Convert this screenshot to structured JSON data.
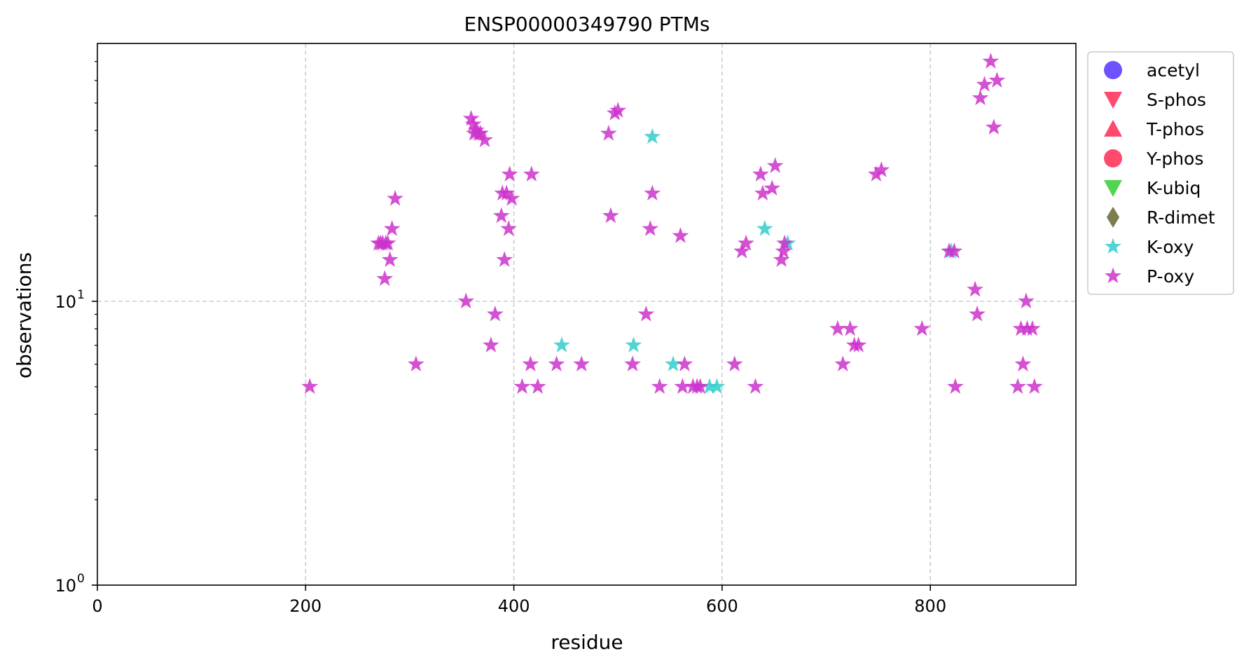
{
  "chart_data": {
    "type": "scatter",
    "title": "ENSP00000349790 PTMs",
    "xlabel": "residue",
    "ylabel": "observations",
    "xlim": [
      0,
      940
    ],
    "ylim": [
      1,
      75
    ],
    "y_scale": "log",
    "grid": true,
    "legend_position": "upper-right-outside",
    "x_ticks": [
      {
        "value": 0,
        "label": "0"
      },
      {
        "value": 200,
        "label": "200"
      },
      {
        "value": 400,
        "label": "400"
      },
      {
        "value": 600,
        "label": "600"
      },
      {
        "value": 800,
        "label": "800"
      }
    ],
    "y_ticks": [
      {
        "value": 1,
        "base": "10",
        "exp": "0"
      },
      {
        "value": 10,
        "base": "10",
        "exp": "1"
      }
    ],
    "series": [
      {
        "name": "acetyl",
        "marker": "circle",
        "color": "#5533ff",
        "points": []
      },
      {
        "name": "S-phos",
        "marker": "triangle-down",
        "color": "#ff2a55",
        "points": []
      },
      {
        "name": "T-phos",
        "marker": "triangle-up",
        "color": "#ff2a55",
        "points": []
      },
      {
        "name": "Y-phos",
        "marker": "circle",
        "color": "#ff2a55",
        "points": []
      },
      {
        "name": "K-ubiq",
        "marker": "triangle-down",
        "color": "#33cc33",
        "points": []
      },
      {
        "name": "R-dimet",
        "marker": "diamond",
        "color": "#666633",
        "points": []
      },
      {
        "name": "K-oxy",
        "marker": "star",
        "color": "#33cccc",
        "points": [
          [
            446,
            7
          ],
          [
            515,
            7
          ],
          [
            533,
            38
          ],
          [
            553,
            6
          ],
          [
            588,
            5
          ],
          [
            595,
            5
          ],
          [
            641,
            18
          ],
          [
            663,
            16
          ],
          [
            820,
            15
          ]
        ]
      },
      {
        "name": "P-oxy",
        "marker": "star",
        "color": "#cc33cc",
        "points": [
          [
            204,
            5
          ],
          [
            270,
            16
          ],
          [
            272,
            16
          ],
          [
            274,
            16
          ],
          [
            276,
            12
          ],
          [
            277,
            16
          ],
          [
            279,
            16
          ],
          [
            281,
            14
          ],
          [
            283,
            18
          ],
          [
            286,
            23
          ],
          [
            306,
            6
          ],
          [
            354,
            10
          ],
          [
            359,
            44
          ],
          [
            361,
            42
          ],
          [
            362,
            39
          ],
          [
            364,
            40
          ],
          [
            366,
            39
          ],
          [
            368,
            39
          ],
          [
            372,
            37
          ],
          [
            378,
            7
          ],
          [
            382,
            9
          ],
          [
            388,
            20
          ],
          [
            389,
            24
          ],
          [
            391,
            14
          ],
          [
            393,
            24
          ],
          [
            395,
            18
          ],
          [
            396,
            28
          ],
          [
            398,
            23
          ],
          [
            408,
            5
          ],
          [
            416,
            6
          ],
          [
            417,
            28
          ],
          [
            423,
            5
          ],
          [
            441,
            6
          ],
          [
            465,
            6
          ],
          [
            491,
            39
          ],
          [
            493,
            20
          ],
          [
            497,
            46
          ],
          [
            500,
            47
          ],
          [
            514,
            6
          ],
          [
            527,
            9
          ],
          [
            531,
            18
          ],
          [
            533,
            24
          ],
          [
            540,
            5
          ],
          [
            560,
            17
          ],
          [
            562,
            5
          ],
          [
            564,
            6
          ],
          [
            572,
            5
          ],
          [
            576,
            5
          ],
          [
            579,
            5
          ],
          [
            612,
            6
          ],
          [
            619,
            15
          ],
          [
            623,
            16
          ],
          [
            632,
            5
          ],
          [
            637,
            28
          ],
          [
            639,
            24
          ],
          [
            648,
            25
          ],
          [
            651,
            30
          ],
          [
            657,
            14
          ],
          [
            659,
            15
          ],
          [
            660,
            16
          ],
          [
            711,
            8
          ],
          [
            716,
            6
          ],
          [
            723,
            8
          ],
          [
            727,
            7
          ],
          [
            731,
            7
          ],
          [
            748,
            28
          ],
          [
            753,
            29
          ],
          [
            792,
            8
          ],
          [
            818,
            15
          ],
          [
            823,
            15
          ],
          [
            824,
            5
          ],
          [
            843,
            11
          ],
          [
            845,
            9
          ],
          [
            848,
            52
          ],
          [
            852,
            58
          ],
          [
            858,
            70
          ],
          [
            861,
            41
          ],
          [
            864,
            60
          ],
          [
            884,
            5
          ],
          [
            887,
            8
          ],
          [
            889,
            6
          ],
          [
            892,
            10
          ],
          [
            893,
            8
          ],
          [
            898,
            8
          ],
          [
            900,
            5
          ]
        ]
      }
    ]
  }
}
